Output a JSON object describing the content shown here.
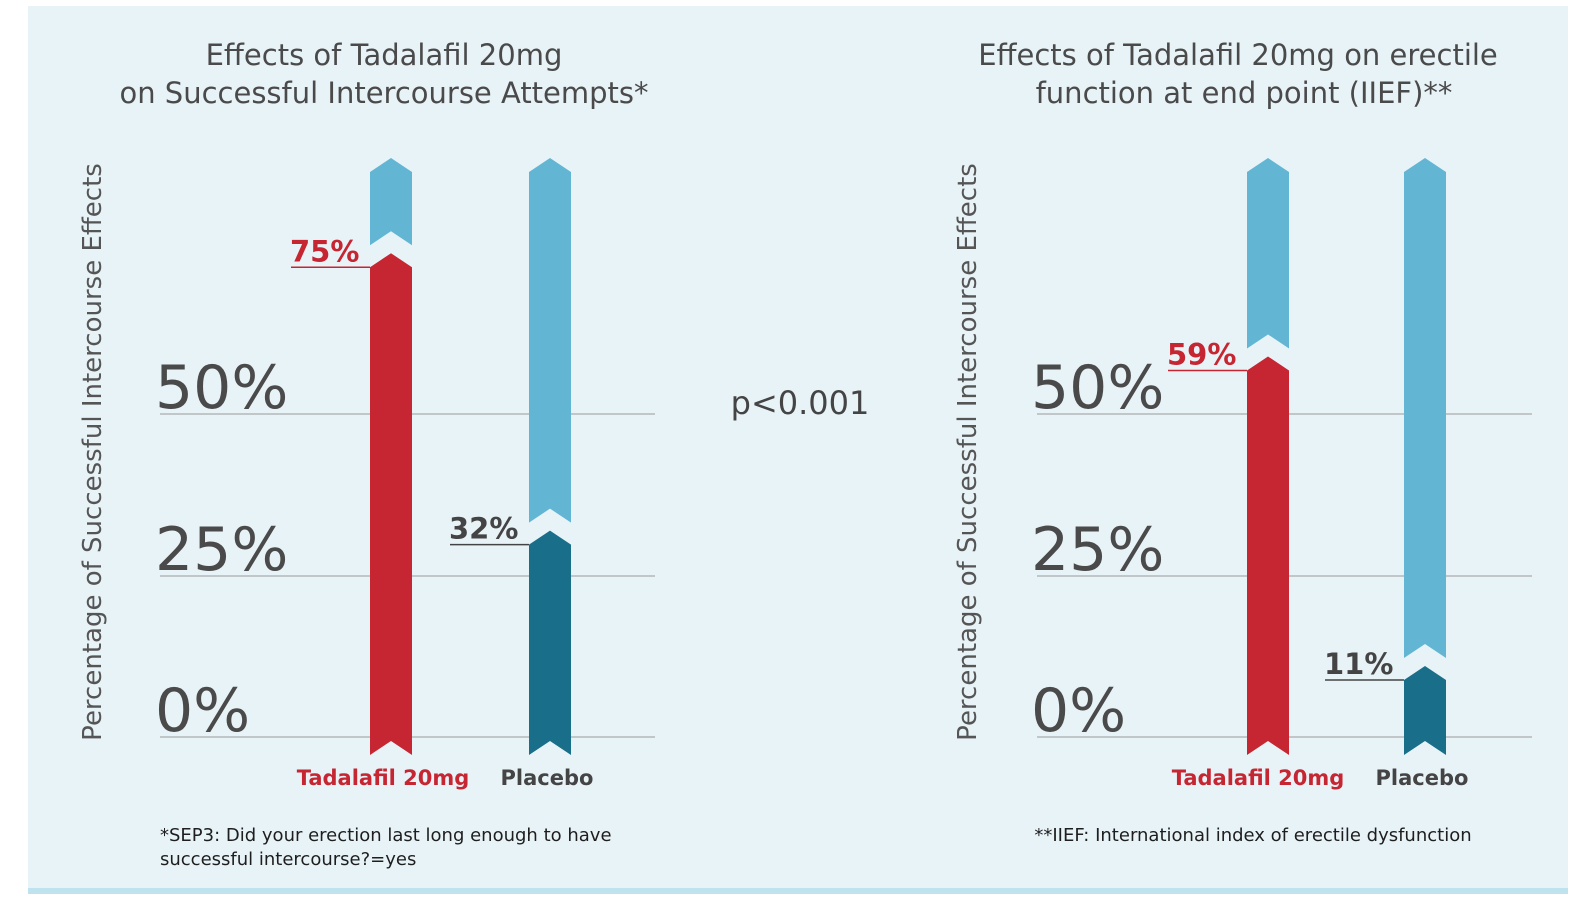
{
  "p_value": "p<0.001",
  "colors": {
    "background": "#e8f3f8",
    "treatment": "#c62632",
    "placebo_fill": "#196e89",
    "bar_track": "#62b6d3",
    "placebo_text": "#444444"
  },
  "chart_data": [
    {
      "type": "bar",
      "title_lines": [
        "Effects of Tadalafil 20mg",
        "on Successful Intercourse Attempts*"
      ],
      "ylabel": "Percentage of Successful Intercourse Effects",
      "y_ticks": [
        "0%",
        "25%",
        "50%"
      ],
      "ylim": [
        0,
        100
      ],
      "grid": true,
      "categories": [
        "Tadalafil 20mg",
        "Placebo"
      ],
      "values": [
        75,
        32
      ],
      "value_labels": [
        "75%",
        "32%"
      ],
      "footnote_lines": [
        "*SEP3: Did your erection last long enough to have",
        "successful intercourse?=yes"
      ]
    },
    {
      "type": "bar",
      "title_lines": [
        "Effects of Tadalafil 20mg on erectile",
        "function at end point (IIEF)**"
      ],
      "ylabel": "Percentage of Successful Intercourse Effects",
      "y_ticks": [
        "0%",
        "25%",
        "50%"
      ],
      "ylim": [
        0,
        100
      ],
      "grid": true,
      "categories": [
        "Tadalafil 20mg",
        "Placebo"
      ],
      "values": [
        59,
        11
      ],
      "value_labels": [
        "59%",
        "11%"
      ],
      "footnote_lines": [
        "**IIEF: International index of erectile dysfunction"
      ]
    }
  ]
}
